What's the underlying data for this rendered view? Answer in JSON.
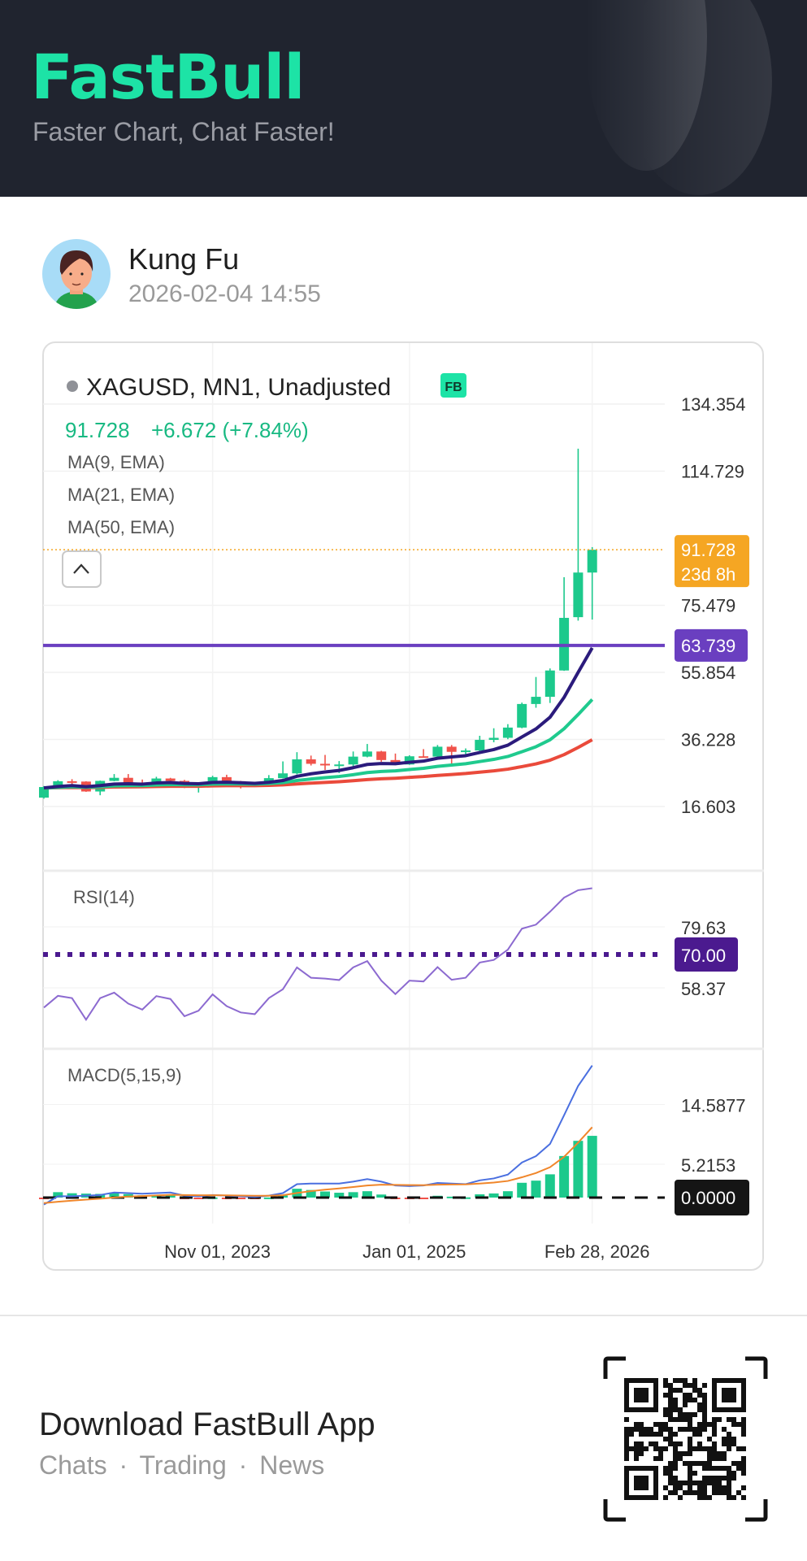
{
  "header": {
    "logo": "FastBull",
    "tagline": "Faster Chart, Chat Faster!"
  },
  "post": {
    "author": "Kung Fu",
    "timestamp": "2026-02-04 14:55"
  },
  "colors": {
    "brand": "#1de3a6",
    "up": "#1cc98c",
    "down": "#f0524a",
    "ema9": "#2b1b7c",
    "ema21": "#1fca8e",
    "ema50": "#ea4a3b",
    "hline": "#6a3fc0",
    "rsi": "#8c6ad0",
    "rsi_level": "#4b1a8f",
    "macd": "#4a6fe0",
    "signal": "#f0862a",
    "price_tag": "#f5a623"
  },
  "chart_data": {
    "type": "candlestick",
    "title": "XAGUSD, MN1, Unadjusted",
    "badge": "FB",
    "last_price": "91.728",
    "change": "+6.672 (+7.84%)",
    "indicators": [
      "MA(9, EMA)",
      "MA(21, EMA)",
      "MA(50, EMA)"
    ],
    "price_ticks": [
      {
        "label": "134.354",
        "value": 134.354
      },
      {
        "label": "114.729",
        "value": 114.729
      },
      {
        "label": "75.479",
        "value": 75.479
      },
      {
        "label": "55.854",
        "value": 55.854
      },
      {
        "label": "36.228",
        "value": 36.228
      },
      {
        "label": "16.603",
        "value": 16.603
      }
    ],
    "current_price": 91.728,
    "current_label": "91.728",
    "countdown": "23d 8h",
    "hline_value": 63.739,
    "hline_label": "63.739",
    "x_labels": [
      {
        "label": "Nov 01, 2023",
        "index": 12
      },
      {
        "label": "Jan 01, 2025",
        "index": 26
      },
      {
        "label": "Feb 28, 2026",
        "index": 39
      }
    ],
    "ohlc": [
      [
        19.2,
        22.6,
        18.9,
        22.3
      ],
      [
        22.3,
        24.3,
        22.0,
        24.0
      ],
      [
        24.0,
        24.6,
        23.1,
        23.9
      ],
      [
        23.9,
        24.0,
        20.9,
        21.0
      ],
      [
        21.0,
        24.2,
        19.9,
        24.1
      ],
      [
        24.1,
        26.1,
        24.0,
        25.0
      ],
      [
        25.0,
        26.1,
        23.0,
        23.5
      ],
      [
        23.5,
        24.5,
        22.1,
        22.8
      ],
      [
        22.8,
        25.3,
        22.6,
        24.8
      ],
      [
        24.8,
        25.0,
        22.2,
        24.1
      ],
      [
        24.1,
        24.4,
        22.0,
        22.3
      ],
      [
        22.3,
        23.7,
        20.7,
        22.9
      ],
      [
        22.9,
        25.6,
        22.4,
        25.2
      ],
      [
        25.2,
        25.9,
        22.5,
        24.0
      ],
      [
        24.0,
        24.1,
        21.9,
        22.9
      ],
      [
        22.9,
        23.2,
        22.3,
        22.7
      ],
      [
        22.7,
        25.8,
        22.5,
        24.9
      ],
      [
        24.9,
        29.8,
        24.8,
        26.3
      ],
      [
        26.3,
        32.5,
        26.0,
        30.4
      ],
      [
        30.4,
        31.5,
        28.6,
        29.1
      ],
      [
        29.1,
        31.7,
        27.3,
        28.9
      ],
      [
        28.9,
        29.9,
        26.4,
        28.9
      ],
      [
        28.9,
        32.7,
        27.7,
        31.2
      ],
      [
        31.2,
        34.9,
        31.0,
        32.7
      ],
      [
        32.7,
        32.9,
        29.7,
        30.2
      ],
      [
        30.2,
        32.1,
        28.7,
        28.9
      ],
      [
        28.9,
        31.6,
        28.8,
        31.3
      ],
      [
        31.3,
        33.4,
        31.1,
        31.2
      ],
      [
        31.2,
        34.6,
        31.1,
        34.1
      ],
      [
        34.1,
        34.6,
        28.3,
        32.6
      ],
      [
        32.6,
        33.6,
        31.6,
        33.0
      ],
      [
        33.0,
        37.3,
        32.6,
        36.1
      ],
      [
        36.1,
        39.5,
        35.4,
        36.7
      ],
      [
        36.7,
        40.7,
        36.3,
        39.7
      ],
      [
        39.7,
        47.0,
        39.5,
        46.6
      ],
      [
        46.6,
        54.5,
        45.5,
        48.7
      ],
      [
        48.7,
        57.0,
        46.9,
        56.4
      ],
      [
        56.4,
        83.7,
        56.3,
        71.8
      ],
      [
        72.0,
        121.3,
        71.0,
        85.056
      ],
      [
        85.056,
        92.5,
        71.3,
        91.728
      ]
    ],
    "rsi": {
      "label": "RSI(14)",
      "ticks": [
        {
          "label": "79.63",
          "value": 79.63
        },
        {
          "label": "58.37",
          "value": 58.37
        }
      ],
      "level": 70,
      "level_label": "70.00",
      "values": [
        51.5,
        55.6,
        54.8,
        47.3,
        54.8,
        56.7,
        52.9,
        50.8,
        55.5,
        54.5,
        48.5,
        50.4,
        56.1,
        52.0,
        49.8,
        49.2,
        54.8,
        57.9,
        65.5,
        61.9,
        61.6,
        61.1,
        65.5,
        67.7,
        60.9,
        56.2,
        60.9,
        60.6,
        65.6,
        61.2,
        61.9,
        67.2,
        68.1,
        71.7,
        79.0,
        80.4,
        84.9,
        89.8,
        92.4,
        93.1
      ]
    },
    "macd": {
      "label": "MACD(5,15,9)",
      "ticks": [
        {
          "label": "14.5877",
          "value": 14.5877
        },
        {
          "label": "5.2153",
          "value": 5.2153
        }
      ],
      "zero_label": "0.0000",
      "values": [
        -1.1,
        0.2,
        0.2,
        0.3,
        0.4,
        0.8,
        0.7,
        0.6,
        0.7,
        0.8,
        0.3,
        0.2,
        0.4,
        0.3,
        0.2,
        0.1,
        0.3,
        0.7,
        2.1,
        2.2,
        2.2,
        2.2,
        2.5,
        2.9,
        2.5,
        1.9,
        1.8,
        1.9,
        2.3,
        2.2,
        2.1,
        2.7,
        3.0,
        3.6,
        5.5,
        6.5,
        8.4,
        12.9,
        17.5,
        20.7
      ]
    }
  },
  "footer": {
    "title": "Download FastBull App",
    "links": [
      "Chats",
      "Trading",
      "News"
    ],
    "separator": "·"
  }
}
